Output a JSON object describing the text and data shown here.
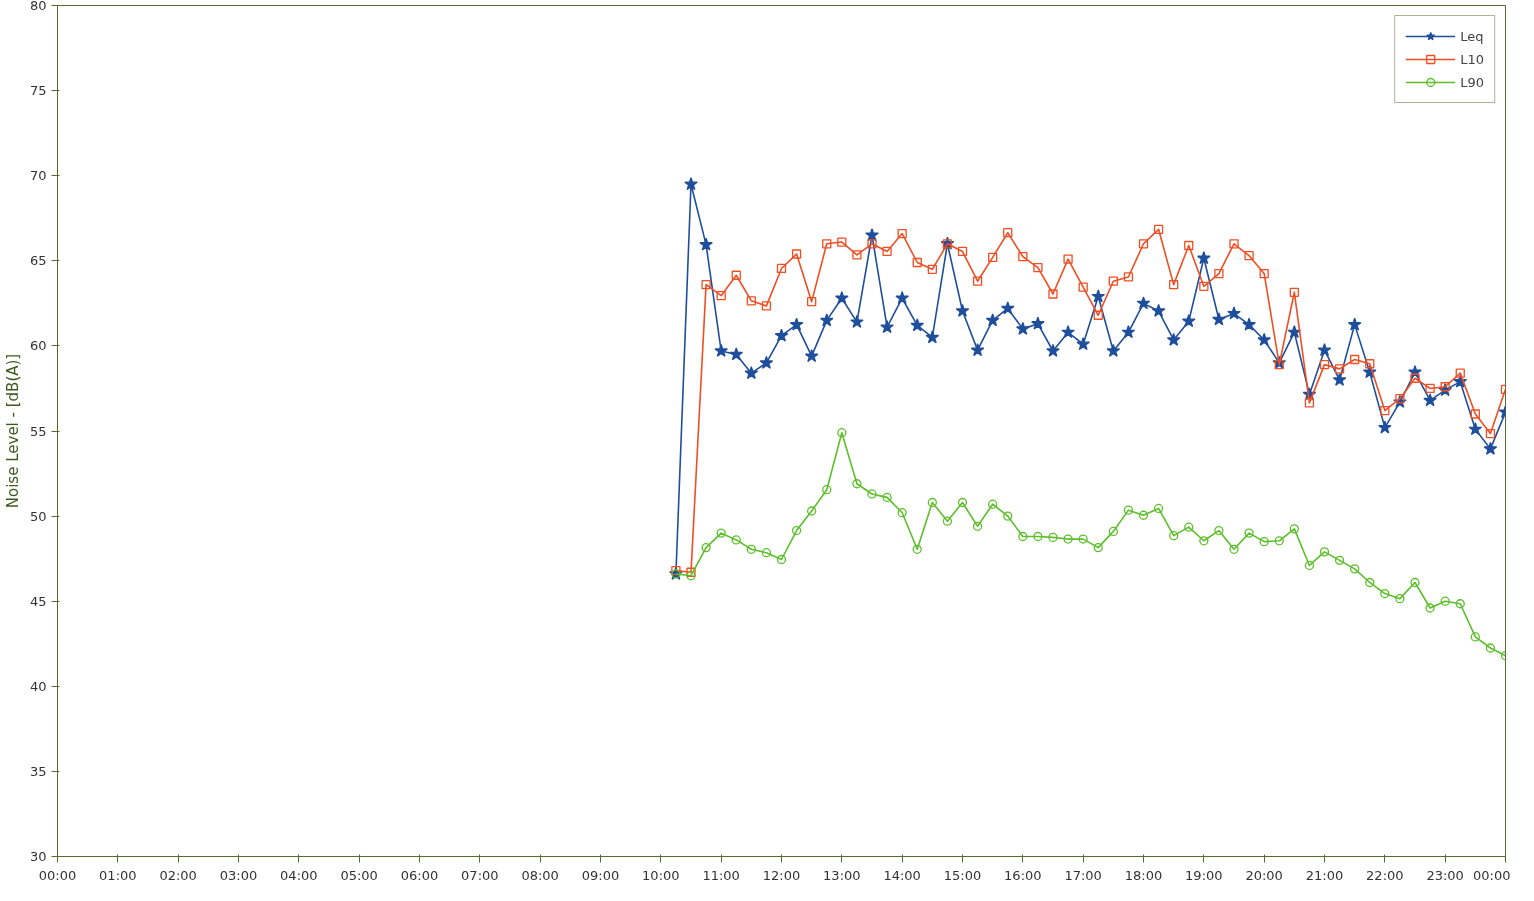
{
  "chart_data": {
    "type": "line",
    "ylabel": "Noise Level - [dB(A)]",
    "x": [
      10.25,
      10.5,
      10.75,
      11,
      11.25,
      11.5,
      11.75,
      12,
      12.25,
      12.5,
      12.75,
      13,
      13.25,
      13.5,
      13.75,
      14,
      14.25,
      14.5,
      14.75,
      15,
      15.25,
      15.5,
      15.75,
      16,
      16.25,
      16.5,
      16.75,
      17,
      17.25,
      17.5,
      17.75,
      18,
      18.25,
      18.5,
      18.75,
      19,
      19.25,
      19.5,
      19.75,
      20,
      20.25,
      20.5,
      20.75,
      21,
      21.25,
      21.5,
      21.75,
      22,
      22.25,
      22.5,
      22.75,
      23,
      23.25,
      23.5,
      23.75,
      24
    ],
    "series": [
      {
        "name": "Leq",
        "color": "#1f4f9c",
        "marker": "star",
        "values": [
          46.6,
          69.5,
          65.95,
          59.7,
          59.5,
          58.4,
          59.0,
          60.6,
          61.25,
          59.4,
          61.5,
          62.8,
          61.4,
          66.5,
          61.1,
          62.8,
          61.2,
          60.5,
          66.0,
          62.05,
          59.75,
          61.5,
          62.2,
          61.0,
          61.3,
          59.7,
          60.8,
          60.1,
          62.9,
          59.7,
          60.8,
          62.5,
          62.05,
          60.35,
          61.45,
          65.15,
          61.55,
          61.9,
          61.25,
          60.35,
          59.0,
          60.8,
          57.15,
          59.75,
          58.0,
          61.25,
          58.45,
          55.2,
          56.7,
          58.45,
          56.8,
          57.4,
          57.9,
          55.1,
          53.95,
          56.1
        ]
      },
      {
        "name": "L10",
        "color": "#f04e23",
        "marker": "square",
        "values": [
          46.8,
          46.7,
          63.6,
          62.95,
          64.15,
          62.65,
          62.35,
          64.55,
          65.4,
          62.6,
          66.0,
          66.1,
          65.35,
          66.0,
          65.55,
          66.6,
          64.9,
          64.5,
          66.0,
          65.55,
          63.8,
          65.2,
          66.65,
          65.25,
          64.6,
          63.05,
          65.1,
          63.45,
          61.8,
          63.8,
          64.05,
          66.0,
          66.85,
          63.6,
          65.9,
          63.5,
          64.25,
          66.0,
          65.3,
          64.25,
          58.9,
          63.15,
          56.65,
          58.9,
          58.65,
          59.2,
          58.95,
          56.2,
          56.9,
          58.1,
          57.5,
          57.6,
          58.4,
          56.0,
          54.85,
          57.45
        ]
      },
      {
        "name": "L90",
        "color": "#5cbf2a",
        "marker": "circle",
        "values": [
          46.6,
          46.5,
          48.15,
          49.0,
          48.6,
          48.05,
          47.85,
          47.45,
          49.15,
          50.3,
          51.55,
          54.9,
          51.9,
          51.3,
          51.1,
          50.2,
          48.05,
          50.8,
          49.7,
          50.8,
          49.4,
          50.7,
          50.0,
          48.8,
          48.8,
          48.75,
          48.65,
          48.65,
          48.15,
          49.1,
          50.35,
          50.05,
          50.45,
          48.85,
          49.35,
          48.55,
          49.15,
          48.05,
          49.0,
          48.5,
          48.55,
          49.25,
          47.1,
          47.9,
          47.4,
          46.9,
          46.1,
          45.45,
          45.15,
          46.1,
          44.6,
          45.0,
          44.85,
          42.9,
          42.25,
          41.8
        ]
      }
    ],
    "xlim": [
      0,
      24
    ],
    "xticks": [
      {
        "value": 0,
        "label": "00:00"
      },
      {
        "value": 1,
        "label": "01:00"
      },
      {
        "value": 2,
        "label": "02:00"
      },
      {
        "value": 3,
        "label": "03:00"
      },
      {
        "value": 4,
        "label": "04:00"
      },
      {
        "value": 5,
        "label": "05:00"
      },
      {
        "value": 6,
        "label": "06:00"
      },
      {
        "value": 7,
        "label": "07:00"
      },
      {
        "value": 8,
        "label": "08:00"
      },
      {
        "value": 9,
        "label": "09:00"
      },
      {
        "value": 10,
        "label": "10:00"
      },
      {
        "value": 11,
        "label": "11:00"
      },
      {
        "value": 12,
        "label": "12:00"
      },
      {
        "value": 13,
        "label": "13:00"
      },
      {
        "value": 14,
        "label": "14:00"
      },
      {
        "value": 15,
        "label": "15:00"
      },
      {
        "value": 16,
        "label": "16:00"
      },
      {
        "value": 17,
        "label": "17:00"
      },
      {
        "value": 18,
        "label": "18:00"
      },
      {
        "value": 19,
        "label": "19:00"
      },
      {
        "value": 20,
        "label": "20:00"
      },
      {
        "value": 21,
        "label": "21:00"
      },
      {
        "value": 22,
        "label": "22:00"
      },
      {
        "value": 23,
        "label": "23:00"
      },
      {
        "value": 24,
        "label": "00:00"
      }
    ],
    "ylim": [
      30,
      80
    ],
    "yticks": [
      30,
      35,
      40,
      45,
      50,
      55,
      60,
      65,
      70,
      75,
      80
    ],
    "grid": false,
    "legend": "top right",
    "line_style": "solid"
  }
}
